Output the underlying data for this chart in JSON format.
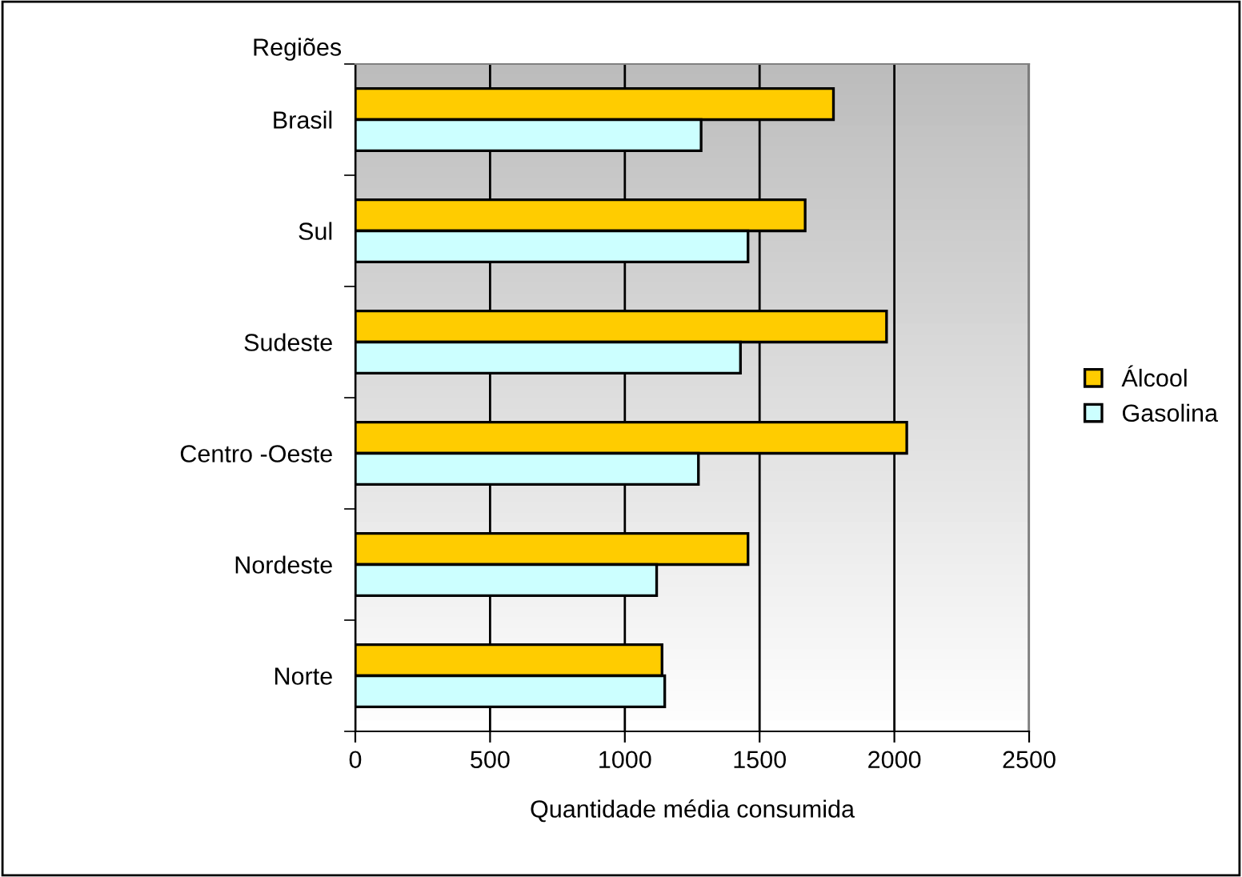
{
  "chart_data": {
    "type": "bar",
    "orientation": "horizontal",
    "ylabel": "Regiões",
    "xlabel": "Quantidade média consumida",
    "categories": [
      "Brasil",
      "Sul",
      "Sudeste",
      "Centro -Oeste",
      "Nordeste",
      "Norte"
    ],
    "series": [
      {
        "name": "Álcool",
        "color": "#ffcc00",
        "values": [
          1774,
          1669,
          1971,
          2046,
          1457,
          1138
        ]
      },
      {
        "name": "Gasolina",
        "color": "#ccffff",
        "values": [
          1283,
          1457,
          1429,
          1273,
          1118,
          1148
        ]
      }
    ],
    "xlim": [
      0,
      2500
    ],
    "xticks": [
      0,
      500,
      1000,
      1500,
      2000,
      2500
    ],
    "grid": "x",
    "legend": "right"
  }
}
